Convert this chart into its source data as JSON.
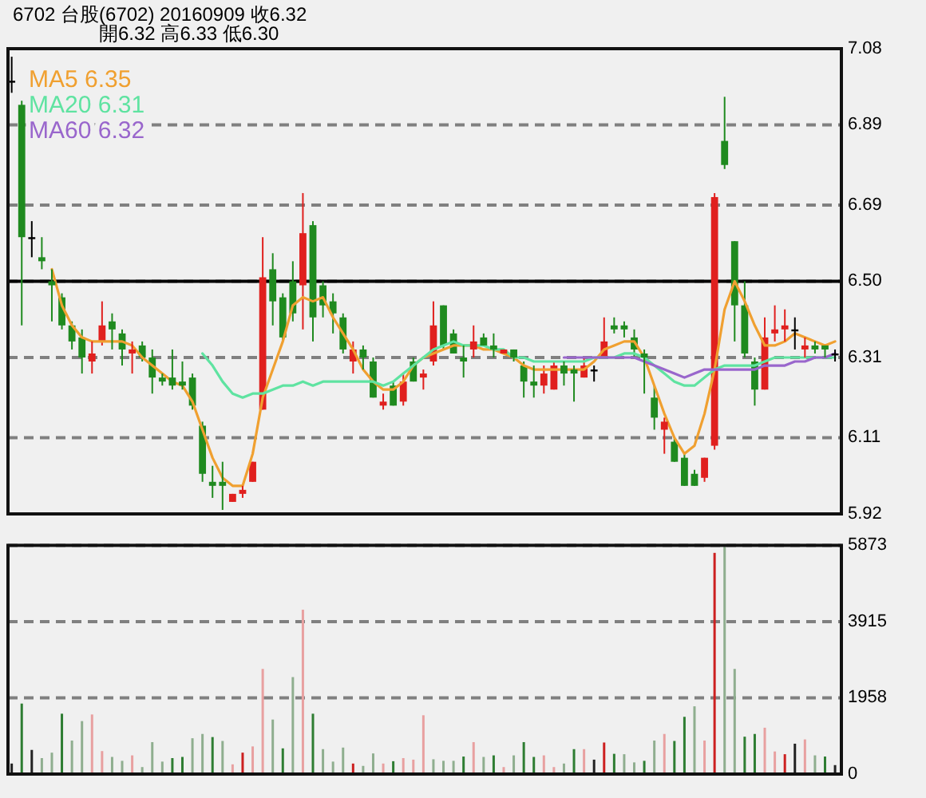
{
  "chart_data": [
    {
      "type": "candlestick",
      "title": "6702 台股(6702) 20160909 收6.32",
      "subtitle": "開6.32 高6.33 低6.30",
      "categories": [
        null,
        null,
        null,
        null,
        null,
        null,
        null,
        null,
        null,
        null,
        null,
        null,
        null,
        null,
        null,
        null,
        null,
        null,
        null,
        null,
        null,
        null,
        null,
        null,
        null,
        null,
        null,
        null,
        null,
        null,
        null,
        null,
        null,
        null,
        null,
        null,
        null,
        null,
        null,
        null,
        null,
        null,
        null,
        null,
        null,
        null,
        null,
        null,
        null,
        null,
        null,
        null,
        null,
        null,
        null,
        null,
        null,
        null,
        null,
        null,
        null,
        null,
        null,
        null,
        null,
        null,
        null,
        null,
        null,
        null,
        null,
        null,
        null,
        null,
        null,
        null,
        null,
        null,
        null,
        null,
        null,
        null,
        null
      ],
      "ohlc": [
        [
          7.0,
          7.06,
          6.97,
          7.0
        ],
        [
          6.94,
          6.95,
          6.39,
          6.61
        ],
        [
          6.61,
          6.65,
          6.56,
          6.61
        ],
        [
          6.56,
          6.61,
          6.53,
          6.55
        ],
        [
          6.5,
          6.53,
          6.4,
          6.49
        ],
        [
          6.46,
          6.47,
          6.38,
          6.39
        ],
        [
          6.39,
          6.4,
          6.33,
          6.35
        ],
        [
          6.36,
          6.38,
          6.27,
          6.31
        ],
        [
          6.3,
          6.35,
          6.27,
          6.32
        ],
        [
          6.35,
          6.45,
          6.34,
          6.39
        ],
        [
          6.4,
          6.42,
          6.33,
          6.38
        ],
        [
          6.37,
          6.38,
          6.29,
          6.33
        ],
        [
          6.32,
          6.35,
          6.27,
          6.33
        ],
        [
          6.34,
          6.35,
          6.3,
          6.31
        ],
        [
          6.31,
          6.33,
          6.22,
          6.26
        ],
        [
          6.26,
          6.27,
          6.24,
          6.25
        ],
        [
          6.26,
          6.33,
          6.23,
          6.24
        ],
        [
          6.25,
          6.3,
          6.23,
          6.24
        ],
        [
          6.26,
          6.27,
          6.18,
          6.19
        ],
        [
          6.14,
          6.15,
          6.0,
          6.02
        ],
        [
          6.0,
          6.04,
          5.96,
          5.99
        ],
        [
          6.0,
          6.05,
          5.93,
          5.99
        ],
        [
          5.95,
          5.97,
          5.95,
          5.97
        ],
        [
          5.97,
          5.99,
          5.96,
          5.98
        ],
        [
          6.0,
          6.05,
          6.0,
          6.05
        ],
        [
          6.18,
          6.61,
          6.18,
          6.51
        ],
        [
          6.53,
          6.57,
          6.39,
          6.45
        ],
        [
          6.46,
          6.47,
          6.35,
          6.36
        ],
        [
          6.5,
          6.55,
          6.4,
          6.42
        ],
        [
          6.49,
          6.72,
          6.38,
          6.62
        ],
        [
          6.64,
          6.65,
          6.35,
          6.41
        ],
        [
          6.49,
          6.5,
          6.41,
          6.44
        ],
        [
          6.45,
          6.47,
          6.37,
          6.42
        ],
        [
          6.41,
          6.42,
          6.32,
          6.33
        ],
        [
          6.3,
          6.35,
          6.27,
          6.33
        ],
        [
          6.33,
          6.34,
          6.28,
          6.31
        ],
        [
          6.3,
          6.31,
          6.21,
          6.21
        ],
        [
          6.19,
          6.22,
          6.18,
          6.2
        ],
        [
          6.24,
          6.25,
          6.19,
          6.19
        ],
        [
          6.2,
          6.27,
          6.19,
          6.25
        ],
        [
          6.3,
          6.31,
          6.25,
          6.25
        ],
        [
          6.26,
          6.28,
          6.23,
          6.27
        ],
        [
          6.3,
          6.45,
          6.29,
          6.39
        ],
        [
          6.44,
          6.44,
          6.33,
          6.34
        ],
        [
          6.37,
          6.38,
          6.32,
          6.32
        ],
        [
          6.31,
          6.34,
          6.26,
          6.3
        ],
        [
          6.33,
          6.39,
          6.31,
          6.35
        ],
        [
          6.36,
          6.37,
          6.34,
          6.34
        ],
        [
          6.34,
          6.37,
          6.31,
          6.33
        ],
        [
          6.32,
          6.33,
          6.32,
          6.33
        ],
        [
          6.33,
          6.33,
          6.3,
          6.31
        ],
        [
          6.29,
          6.3,
          6.21,
          6.25
        ],
        [
          6.25,
          6.29,
          6.21,
          6.24
        ],
        [
          6.24,
          6.29,
          6.22,
          6.27
        ],
        [
          6.23,
          6.3,
          6.23,
          6.29
        ],
        [
          6.29,
          6.3,
          6.24,
          6.27
        ],
        [
          6.28,
          6.29,
          6.2,
          6.27
        ],
        [
          6.26,
          6.31,
          6.26,
          6.29
        ],
        [
          6.28,
          6.29,
          6.25,
          6.28
        ],
        [
          6.31,
          6.41,
          6.31,
          6.35
        ],
        [
          6.39,
          6.41,
          6.37,
          6.38
        ],
        [
          6.39,
          6.4,
          6.36,
          6.38
        ],
        [
          6.36,
          6.38,
          6.31,
          6.33
        ],
        [
          6.32,
          6.33,
          6.22,
          6.31
        ],
        [
          6.21,
          6.24,
          6.13,
          6.16
        ],
        [
          6.13,
          6.16,
          6.07,
          6.15
        ],
        [
          6.1,
          6.11,
          6.05,
          6.05
        ],
        [
          6.06,
          6.07,
          5.99,
          5.99
        ],
        [
          6.02,
          6.03,
          5.99,
          5.99
        ],
        [
          6.01,
          6.06,
          6.0,
          6.06
        ],
        [
          6.09,
          6.72,
          6.08,
          6.71
        ],
        [
          6.85,
          6.96,
          6.78,
          6.79
        ],
        [
          6.6,
          6.6,
          6.35,
          6.44
        ],
        [
          6.44,
          6.5,
          6.31,
          6.32
        ],
        [
          6.3,
          6.31,
          6.19,
          6.23
        ],
        [
          6.23,
          6.41,
          6.23,
          6.36
        ],
        [
          6.37,
          6.44,
          6.35,
          6.38
        ],
        [
          6.38,
          6.43,
          6.35,
          6.39
        ],
        [
          6.38,
          6.41,
          6.33,
          6.38
        ],
        [
          6.33,
          6.36,
          6.31,
          6.34
        ],
        [
          6.34,
          6.35,
          6.32,
          6.33
        ],
        [
          6.34,
          6.34,
          6.31,
          6.33
        ],
        [
          6.32,
          6.33,
          6.3,
          6.32
        ]
      ],
      "colors": [
        "#000000",
        "#1f8a1f",
        "#000000",
        "#1f8a1f",
        "#1f8a1f",
        "#1f8a1f",
        "#1f8a1f",
        "#1f8a1f",
        "#e0201e",
        "#e0201e",
        "#1f8a1f",
        "#1f8a1f",
        "#e0201e",
        "#1f8a1f",
        "#1f8a1f",
        "#1f8a1f",
        "#1f8a1f",
        "#1f8a1f",
        "#1f8a1f",
        "#1f8a1f",
        "#1f8a1f",
        "#1f8a1f",
        "#e0201e",
        "#e0201e",
        "#e0201e",
        "#e0201e",
        "#1f8a1f",
        "#1f8a1f",
        "#1f8a1f",
        "#e0201e",
        "#1f8a1f",
        "#1f8a1f",
        "#1f8a1f",
        "#1f8a1f",
        "#e0201e",
        "#1f8a1f",
        "#1f8a1f",
        "#e0201e",
        "#1f8a1f",
        "#e0201e",
        "#1f8a1f",
        "#e0201e",
        "#e0201e",
        "#1f8a1f",
        "#1f8a1f",
        "#1f8a1f",
        "#e0201e",
        "#1f8a1f",
        "#1f8a1f",
        "#e0201e",
        "#1f8a1f",
        "#1f8a1f",
        "#1f8a1f",
        "#e0201e",
        "#e0201e",
        "#1f8a1f",
        "#1f8a1f",
        "#e0201e",
        "#000000",
        "#e0201e",
        "#1f8a1f",
        "#1f8a1f",
        "#1f8a1f",
        "#1f8a1f",
        "#1f8a1f",
        "#e0201e",
        "#1f8a1f",
        "#1f8a1f",
        "#1f8a1f",
        "#e0201e",
        "#e0201e",
        "#1f8a1f",
        "#1f8a1f",
        "#1f8a1f",
        "#1f8a1f",
        "#e0201e",
        "#e0201e",
        "#e0201e",
        "#000000",
        "#e0201e",
        "#1f8a1f",
        "#1f8a1f",
        "#000000"
      ],
      "series": [
        {
          "name": "MA5 6.35",
          "type": "line",
          "color": "#f0a030",
          "values": [
            null,
            null,
            null,
            null,
            6.53,
            6.44,
            6.39,
            6.36,
            6.35,
            6.35,
            6.35,
            6.35,
            6.34,
            6.31,
            6.29,
            6.27,
            6.25,
            6.24,
            6.2,
            6.13,
            6.06,
            6.01,
            5.99,
            5.99,
            6.07,
            6.21,
            6.28,
            6.35,
            6.44,
            6.46,
            6.45,
            6.46,
            6.41,
            6.37,
            6.33,
            6.28,
            6.25,
            6.23,
            6.23,
            6.25,
            6.29,
            6.31,
            6.32,
            6.33,
            6.34,
            6.34,
            6.34,
            6.33,
            6.33,
            6.32,
            6.31,
            6.29,
            6.28,
            6.28,
            6.28,
            6.28,
            6.28,
            6.28,
            6.3,
            6.33,
            6.34,
            6.35,
            6.35,
            6.31,
            6.24,
            6.17,
            6.11,
            6.07,
            6.09,
            6.17,
            6.28,
            6.43,
            6.5,
            6.45,
            6.39,
            6.34,
            6.34,
            6.35,
            6.37,
            6.36,
            6.35,
            6.34,
            6.35
          ]
        },
        {
          "name": "MA20 6.31",
          "type": "line",
          "color": "#5fe3a1",
          "values": [
            null,
            null,
            null,
            null,
            null,
            null,
            null,
            null,
            null,
            null,
            null,
            null,
            null,
            null,
            null,
            null,
            null,
            null,
            null,
            6.32,
            6.29,
            6.25,
            6.22,
            6.21,
            6.22,
            6.22,
            6.23,
            6.24,
            6.24,
            6.25,
            6.24,
            6.25,
            6.25,
            6.25,
            6.25,
            6.25,
            6.25,
            6.24,
            6.25,
            6.27,
            6.29,
            6.31,
            6.33,
            6.34,
            6.35,
            6.34,
            6.34,
            6.34,
            6.33,
            6.33,
            6.31,
            6.31,
            6.3,
            6.3,
            6.3,
            6.3,
            6.3,
            6.3,
            6.31,
            6.31,
            6.31,
            6.32,
            6.32,
            6.31,
            6.29,
            6.27,
            6.25,
            6.24,
            6.24,
            6.26,
            6.28,
            6.29,
            6.29,
            6.29,
            6.29,
            6.3,
            6.31,
            6.31,
            6.31,
            6.31,
            6.31,
            6.31,
            6.31
          ]
        },
        {
          "name": "MA60 6.32",
          "type": "line",
          "color": "#9966cc",
          "values": [
            null,
            null,
            null,
            null,
            null,
            null,
            null,
            null,
            null,
            null,
            null,
            null,
            null,
            null,
            null,
            null,
            null,
            null,
            null,
            null,
            null,
            null,
            null,
            null,
            null,
            null,
            null,
            null,
            null,
            null,
            null,
            null,
            null,
            null,
            null,
            null,
            null,
            null,
            null,
            null,
            null,
            null,
            null,
            null,
            null,
            null,
            null,
            null,
            null,
            null,
            null,
            null,
            null,
            null,
            null,
            6.31,
            6.31,
            6.31,
            6.31,
            6.31,
            6.31,
            6.31,
            6.31,
            6.3,
            6.29,
            6.28,
            6.27,
            6.26,
            6.27,
            6.28,
            6.28,
            6.28,
            6.28,
            6.28,
            6.28,
            6.29,
            6.29,
            6.29,
            6.3,
            6.3,
            6.31,
            6.31,
            6.32
          ]
        }
      ],
      "ylim": [
        5.92,
        7.08
      ],
      "yticks": [
        5.92,
        6.11,
        6.31,
        {
          "value": 6.5,
          "label": "6.50"
        },
        6.69,
        6.89,
        7.08
      ],
      "grid": "y",
      "ref_lines": [
        {
          "axis": "y",
          "value": 6.5,
          "color": "#000000",
          "line_style": "solid"
        }
      ],
      "legend": "top left",
      "tick_labels": "y"
    },
    {
      "type": "bar",
      "categories": [
        null,
        null,
        null,
        null,
        null,
        null,
        null,
        null,
        null,
        null,
        null,
        null,
        null,
        null,
        null,
        null,
        null,
        null,
        null,
        null,
        null,
        null,
        null,
        null,
        null,
        null,
        null,
        null,
        null,
        null,
        null,
        null,
        null,
        null,
        null,
        null,
        null,
        null,
        null,
        null,
        null,
        null,
        null,
        null,
        null,
        null,
        null,
        null,
        null,
        null,
        null,
        null,
        null,
        null,
        null,
        null,
        null,
        null,
        null,
        null,
        null,
        null,
        null,
        null,
        null,
        null,
        null,
        null,
        null,
        null,
        null,
        null,
        null,
        null,
        null,
        null,
        null,
        null,
        null,
        null,
        null,
        null,
        null
      ],
      "values": [
        270,
        1810,
        620,
        410,
        550,
        1550,
        860,
        1360,
        1530,
        590,
        440,
        340,
        480,
        180,
        820,
        320,
        410,
        440,
        920,
        1030,
        950,
        850,
        250,
        550,
        710,
        2700,
        1400,
        660,
        2490,
        4220,
        1550,
        640,
        320,
        680,
        270,
        210,
        530,
        270,
        330,
        410,
        370,
        1510,
        380,
        340,
        340,
        450,
        820,
        440,
        480,
        180,
        480,
        820,
        440,
        480,
        180,
        270,
        640,
        640,
        370,
        810,
        520,
        510,
        300,
        340,
        860,
        1030,
        850,
        1470,
        1740,
        860,
        5680,
        5870,
        2700,
        960,
        1030,
        1190,
        580,
        510,
        780,
        890,
        480,
        450,
        230
      ],
      "colors": [
        "#222222",
        "#2e7d32",
        "#222222",
        "#8fae8f",
        "#8fae8f",
        "#2e7d32",
        "#8fae8f",
        "#8fae8f",
        "#e8a0a0",
        "#e8a0a0",
        "#8fae8f",
        "#8fae8f",
        "#e8a0a0",
        "#8fae8f",
        "#8fae8f",
        "#8fae8f",
        "#2e7d32",
        "#2e7d32",
        "#8fae8f",
        "#8fae8f",
        "#2e7d32",
        "#8fae8f",
        "#e8a0a0",
        "#cc2020",
        "#e8a0a0",
        "#e8a0a0",
        "#8fae8f",
        "#2e7d32",
        "#8fae8f",
        "#e8a0a0",
        "#2e7d32",
        "#8fae8f",
        "#8fae8f",
        "#8fae8f",
        "#cc2020",
        "#8fae8f",
        "#8fae8f",
        "#e8a0a0",
        "#2e7d32",
        "#e8a0a0",
        "#e8a0a0",
        "#e8a0a0",
        "#8fae8f",
        "#8fae8f",
        "#8fae8f",
        "#2e7d32",
        "#e8a0a0",
        "#8fae8f",
        "#2e7d32",
        "#e8a0a0",
        "#8fae8f",
        "#2e7d32",
        "#2e7d32",
        "#e8a0a0",
        "#e8a0a0",
        "#8fae8f",
        "#2e7d32",
        "#e8a0a0",
        "#222222",
        "#cc2020",
        "#2e7d32",
        "#8fae8f",
        "#8fae8f",
        "#2e7d32",
        "#8fae8f",
        "#e8a0a0",
        "#2e7d32",
        "#2e7d32",
        "#8fae8f",
        "#e8a0a0",
        "#cc2020",
        "#8fae8f",
        "#8fae8f",
        "#2e7d32",
        "#2e7d32",
        "#e8a0a0",
        "#e8a0a0",
        "#cc2020",
        "#222222",
        "#e8a0a0",
        "#8fae8f",
        "#2e7d32",
        "#222222"
      ],
      "ylim": [
        0,
        5873
      ],
      "yticks": [
        0,
        1958,
        3915,
        5873
      ],
      "grid": "y",
      "tick_labels": "y"
    }
  ]
}
